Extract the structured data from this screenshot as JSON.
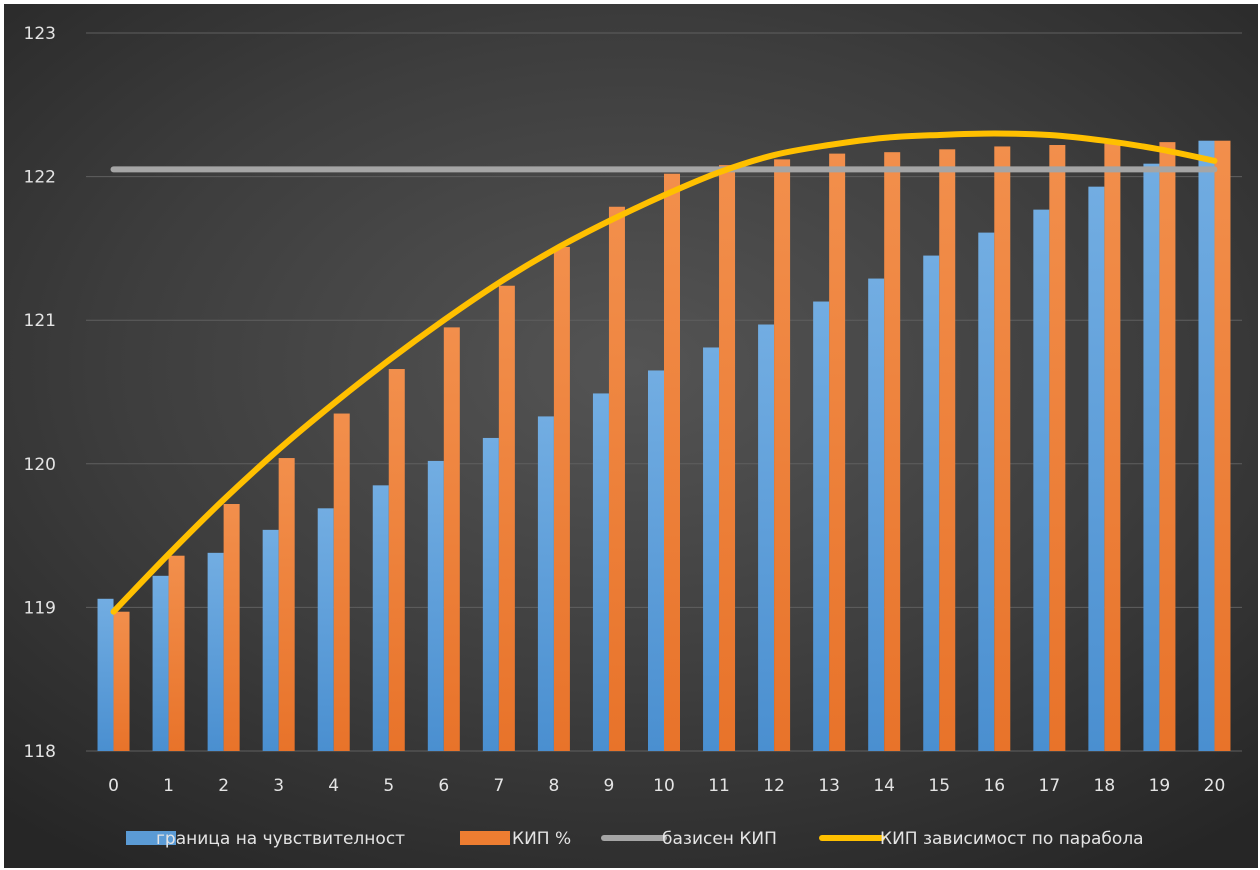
{
  "chart_data": {
    "type": "bar",
    "title": "",
    "xlabel": "",
    "ylabel": "",
    "ylim": [
      118,
      123
    ],
    "yticks": [
      118,
      119,
      120,
      121,
      122,
      123
    ],
    "grid": true,
    "legend_position": "bottom",
    "categories": [
      "0",
      "1",
      "2",
      "3",
      "4",
      "5",
      "6",
      "7",
      "8",
      "9",
      "10",
      "11",
      "12",
      "13",
      "14",
      "15",
      "16",
      "17",
      "18",
      "19",
      "20"
    ],
    "series": [
      {
        "name": "граница на чувствителност",
        "type": "bar",
        "color": "#5b9bd5",
        "values": [
          119.06,
          119.22,
          119.38,
          119.54,
          119.69,
          119.85,
          120.02,
          120.18,
          120.33,
          120.49,
          120.65,
          120.81,
          120.97,
          121.13,
          121.29,
          121.45,
          121.61,
          121.77,
          121.93,
          122.09,
          122.25
        ]
      },
      {
        "name": "КИП %",
        "type": "bar",
        "color": "#ed7d31",
        "values": [
          118.97,
          119.36,
          119.72,
          120.04,
          120.35,
          120.66,
          120.95,
          121.24,
          121.51,
          121.79,
          122.02,
          122.08,
          122.12,
          122.16,
          122.17,
          122.19,
          122.21,
          122.22,
          122.23,
          122.24,
          122.25
        ]
      },
      {
        "name": "базисен КИП",
        "type": "line",
        "color": "#a5a5a5",
        "values": [
          122.05,
          122.05,
          122.05,
          122.05,
          122.05,
          122.05,
          122.05,
          122.05,
          122.05,
          122.05,
          122.05,
          122.05,
          122.05,
          122.05,
          122.05,
          122.05,
          122.05,
          122.05,
          122.05,
          122.05,
          122.05
        ]
      },
      {
        "name": "КИП зависимост по парабола",
        "type": "line",
        "color": "#ffc000",
        "values": [
          118.97,
          119.37,
          119.75,
          120.1,
          120.42,
          120.72,
          121.0,
          121.26,
          121.49,
          121.69,
          121.87,
          122.03,
          122.15,
          122.22,
          122.27,
          122.29,
          122.3,
          122.29,
          122.25,
          122.19,
          122.11
        ]
      }
    ]
  }
}
